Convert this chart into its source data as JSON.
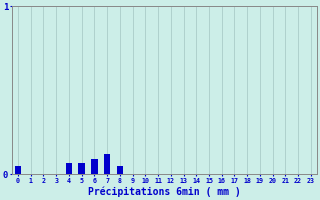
{
  "hours": [
    0,
    1,
    2,
    3,
    4,
    5,
    6,
    7,
    8,
    9,
    10,
    11,
    12,
    13,
    14,
    15,
    16,
    17,
    18,
    19,
    20,
    21,
    22,
    23
  ],
  "values": [
    0.05,
    0,
    0,
    0,
    0.07,
    0.07,
    0.09,
    0.12,
    0.05,
    0,
    0,
    0,
    0,
    0,
    0,
    0,
    0,
    0,
    0,
    0,
    0,
    0,
    0,
    0
  ],
  "ylim": [
    0,
    1.0
  ],
  "xlim": [
    -0.5,
    23.5
  ],
  "bar_color": "#0000cc",
  "bg_color": "#cceee8",
  "grid_color": "#aaccc8",
  "axis_color": "#888888",
  "text_color": "#0000cc",
  "xlabel": "Précipitations 6min ( mm )",
  "yticks": [
    0,
    1
  ],
  "ytick_labels": [
    "0",
    "1"
  ],
  "title": ""
}
